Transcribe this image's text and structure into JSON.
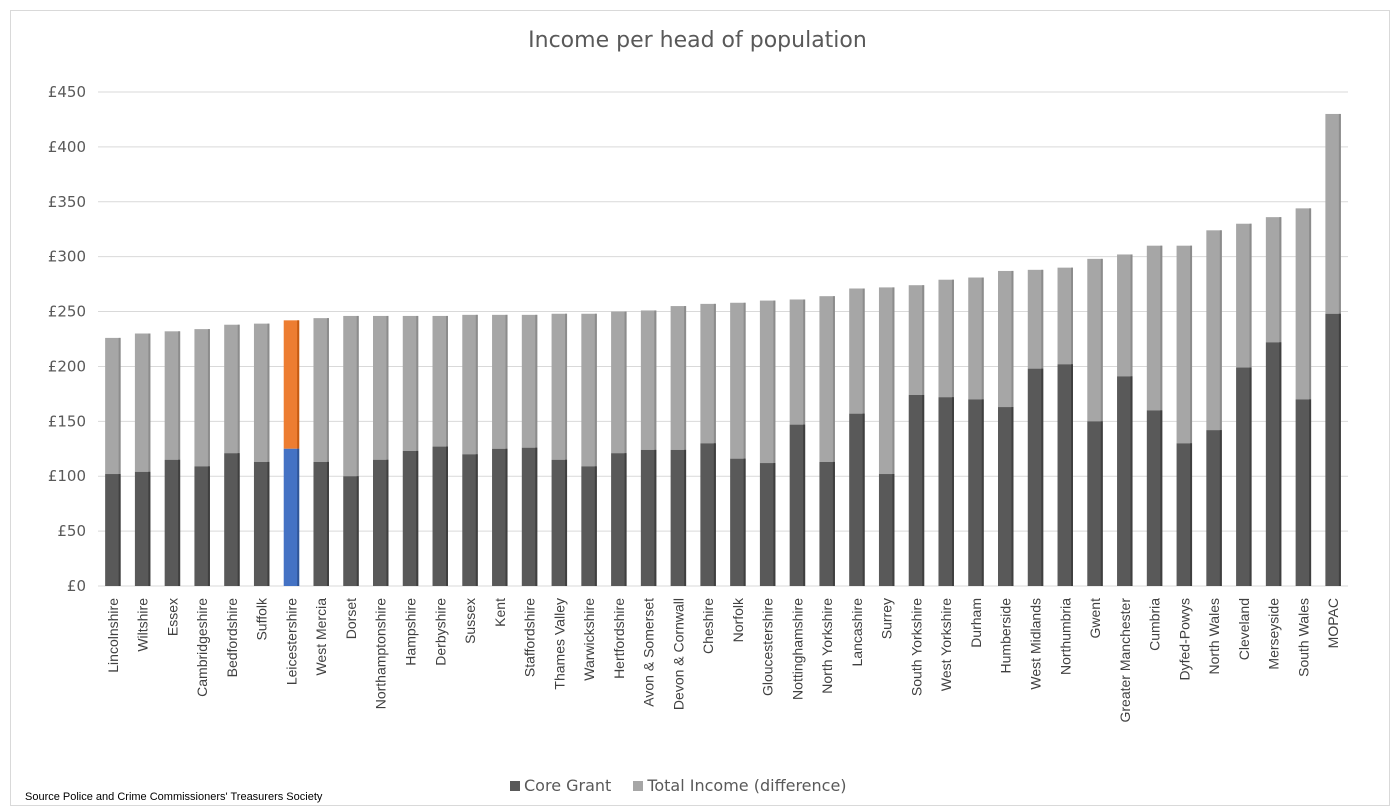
{
  "source_note": "Source Police and Crime Commissioners' Treasurers Society",
  "chart_data": {
    "type": "bar",
    "stacked": true,
    "title": "Income per head of population",
    "xlabel": "",
    "ylabel": "",
    "ylim": [
      0,
      450
    ],
    "yticks": [
      "£0",
      "£50",
      "£100",
      "£150",
      "£200",
      "£250",
      "£300",
      "£350",
      "£400",
      "£450"
    ],
    "grid": true,
    "legend_position": "bottom",
    "highlight_category": "Leicestershire",
    "colors": {
      "core": "#595959",
      "diff": "#a6a6a6",
      "highlight_core": "#4472c4",
      "highlight_diff": "#ed7d31",
      "grid": "#d9d9d9",
      "axis_text": "#595959"
    },
    "categories": [
      "Lincolnshire",
      "Wiltshire",
      "Essex",
      "Cambridgeshire",
      "Bedfordshire",
      "Suffolk",
      "Leicestershire",
      "West Mercia",
      "Dorset",
      "Northamptonshire",
      "Hampshire",
      "Derbyshire",
      "Sussex",
      "Kent",
      "Staffordshire",
      "Thames Valley",
      "Warwickshire",
      "Hertfordshire",
      "Avon & Somerset",
      "Devon & Cornwall",
      "Cheshire",
      "Norfolk",
      "Gloucestershire",
      "Nottinghamshire",
      "North Yorkshire",
      "Lancashire",
      "Surrey",
      "South Yorkshire",
      "West Yorkshire",
      "Durham",
      "Humberside",
      "West Midlands",
      "Northumbria",
      "Gwent",
      "Greater Manchester",
      "Cumbria",
      "Dyfed-Powys",
      "North Wales",
      "Cleveland",
      "Merseyside",
      "South Wales",
      "MOPAC"
    ],
    "series": [
      {
        "name": "Core Grant",
        "values": [
          102,
          104,
          115,
          109,
          121,
          113,
          125,
          113,
          100,
          115,
          123,
          127,
          120,
          125,
          126,
          115,
          109,
          121,
          124,
          124,
          130,
          116,
          112,
          147,
          113,
          157,
          102,
          174,
          172,
          170,
          163,
          198,
          202,
          150,
          191,
          160,
          130,
          142,
          199,
          222,
          170,
          248
        ]
      },
      {
        "name": "Total Income (difference)",
        "values": [
          124,
          126,
          117,
          125,
          117,
          126,
          117,
          131,
          146,
          131,
          123,
          119,
          127,
          122,
          121,
          133,
          139,
          129,
          127,
          131,
          127,
          142,
          148,
          114,
          151,
          114,
          170,
          100,
          107,
          111,
          124,
          90,
          88,
          148,
          111,
          150,
          180,
          182,
          131,
          114,
          174,
          182
        ]
      }
    ]
  }
}
